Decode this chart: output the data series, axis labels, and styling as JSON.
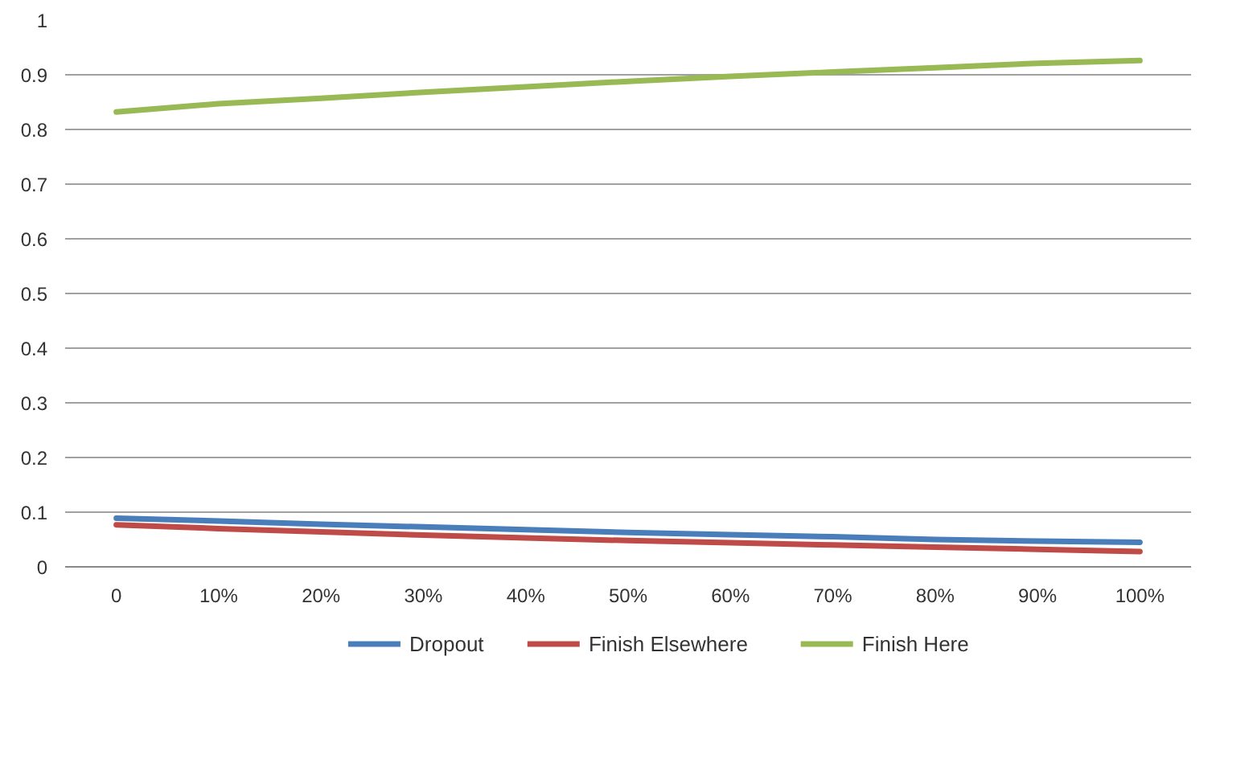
{
  "chart_data": {
    "type": "line",
    "categories": [
      "0",
      "10%",
      "20%",
      "30%",
      "40%",
      "50%",
      "60%",
      "70%",
      "80%",
      "90%",
      "100%"
    ],
    "series": [
      {
        "name": "Dropout",
        "color": "#4a7ebb",
        "values": [
          0.089,
          0.084,
          0.078,
          0.073,
          0.068,
          0.063,
          0.059,
          0.055,
          0.05,
          0.047,
          0.045
        ]
      },
      {
        "name": "Finish Elsewhere",
        "color": "#be4b48",
        "values": [
          0.077,
          0.07,
          0.064,
          0.058,
          0.053,
          0.048,
          0.044,
          0.04,
          0.036,
          0.032,
          0.028
        ]
      },
      {
        "name": "Finish Here",
        "color": "#98b954",
        "values": [
          0.832,
          0.847,
          0.857,
          0.868,
          0.878,
          0.888,
          0.897,
          0.905,
          0.913,
          0.921,
          0.926
        ]
      }
    ],
    "ylim": [
      0,
      1
    ],
    "yticks": [
      0,
      0.1,
      0.2,
      0.3,
      0.4,
      0.5,
      0.6,
      0.7,
      0.8,
      0.9,
      1
    ],
    "grid": "y",
    "legend": "bottom",
    "marker": "none",
    "line_style": "solid"
  }
}
